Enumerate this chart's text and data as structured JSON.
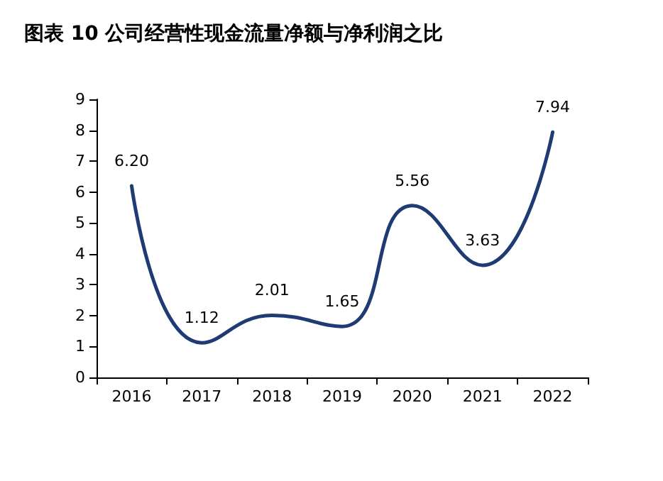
{
  "chart_data": {
    "type": "line",
    "title": "图表 10 公司经营性现金流量净额与净利润之比",
    "categories": [
      "2016",
      "2017",
      "2018",
      "2019",
      "2020",
      "2021",
      "2022"
    ],
    "series": [
      {
        "color": "#1f3b73",
        "values": [
          6.2,
          1.12,
          2.01,
          1.65,
          5.56,
          3.63,
          7.94
        ],
        "value_labels": [
          "6.20",
          "1.12",
          "2.01",
          "1.65",
          "5.56",
          "3.63",
          "7.94"
        ]
      }
    ],
    "ylim": [
      0,
      9
    ],
    "yticks": [
      0,
      1,
      2,
      3,
      4,
      5,
      6,
      7,
      8,
      9
    ],
    "grid": false,
    "marker": "none",
    "line_style": "solid"
  }
}
